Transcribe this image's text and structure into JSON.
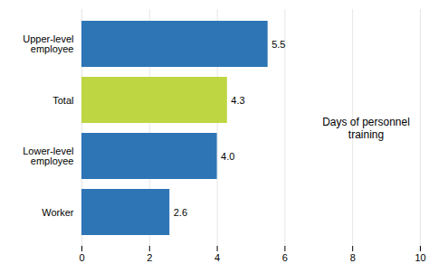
{
  "chart_data": {
    "type": "bar",
    "orientation": "horizontal",
    "categories": [
      "Worker",
      "Lower-level\nemployee",
      "Total",
      "Upper-level\nemployee"
    ],
    "values": [
      2.6,
      4.0,
      4.3,
      5.5
    ],
    "value_labels": [
      "2.6",
      "4.0",
      "4.3",
      "5.5"
    ],
    "colors": [
      "#2e75b6",
      "#2e75b6",
      "#bdd642",
      "#2e75b6"
    ],
    "data_labels": true,
    "xlim": [
      0,
      10
    ],
    "xticks": [
      0,
      2,
      4,
      6,
      8,
      10
    ],
    "grid": true,
    "annotation": "Days of personnel\ntraining"
  }
}
